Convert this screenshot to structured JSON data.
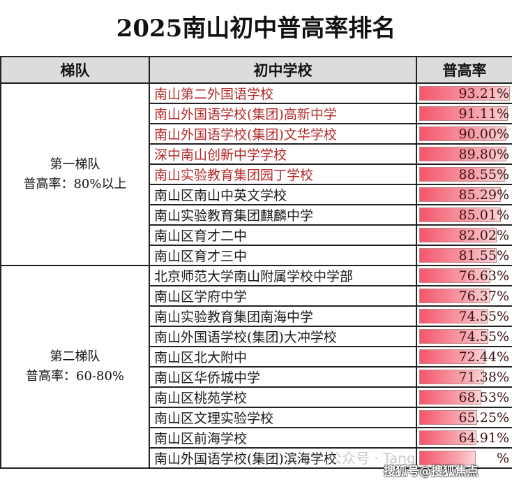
{
  "title": "2025南山初中普高率排名",
  "headers": {
    "tier": "梯队",
    "school": "初中学校",
    "rate": "普高率"
  },
  "tiers": [
    {
      "name": "第一梯队",
      "note": "普高率：80%以上",
      "rows": [
        {
          "school": "南山第二外国语学校",
          "rate": "93.21%",
          "value": 93.21,
          "highlight": true
        },
        {
          "school": "南山外国语学校(集团)高新中学",
          "rate": "91.11%",
          "value": 91.11,
          "highlight": true
        },
        {
          "school": "南山外国语学校(集团)文华学校",
          "rate": "90.00%",
          "value": 90.0,
          "highlight": true
        },
        {
          "school": "深中南山创新中学学校",
          "rate": "89.80%",
          "value": 89.8,
          "highlight": true
        },
        {
          "school": "南山实验教育集团园丁学校",
          "rate": "88.55%",
          "value": 88.55,
          "highlight": true
        },
        {
          "school": "南山区南山中英文学校",
          "rate": "85.29%",
          "value": 85.29,
          "highlight": false
        },
        {
          "school": "南山实验教育集团麒麟中学",
          "rate": "85.01%",
          "value": 85.01,
          "highlight": false
        },
        {
          "school": "南山区育才二中",
          "rate": "82.02%",
          "value": 82.02,
          "highlight": false
        },
        {
          "school": "南山区育才三中",
          "rate": "81.55%",
          "value": 81.55,
          "highlight": false
        }
      ]
    },
    {
      "name": "第二梯队",
      "note": "普高率：60-80%",
      "rows": [
        {
          "school": "北京师范大学南山附属学校中学部",
          "rate": "76.63%",
          "value": 76.63,
          "highlight": false
        },
        {
          "school": "南山区学府中学",
          "rate": "76.37%",
          "value": 76.37,
          "highlight": false
        },
        {
          "school": "南山实验教育集团南海中学",
          "rate": "74.55%",
          "value": 74.55,
          "highlight": false
        },
        {
          "school": "南山外国语学校(集团)大冲学校",
          "rate": "74.55%",
          "value": 74.55,
          "highlight": false
        },
        {
          "school": "南山区北大附中",
          "rate": "72.44%",
          "value": 72.44,
          "highlight": false
        },
        {
          "school": "南山区华侨城中学",
          "rate": "71.38%",
          "value": 71.38,
          "highlight": false
        },
        {
          "school": "南山区桃苑学校",
          "rate": "68.53%",
          "value": 68.53,
          "highlight": false
        },
        {
          "school": "南山区文理实验学校",
          "rate": "65.25%",
          "value": 65.25,
          "highlight": false
        },
        {
          "school": "南山区前海学校",
          "rate": "64.91%",
          "value": 64.91,
          "highlight": false
        },
        {
          "school": "南山外国语学校(集团)滨海学校",
          "rate": "%",
          "value": 64,
          "highlight": false
        }
      ]
    }
  ],
  "watermarks": [
    "公众号 · Tang",
    "搜狐号@搜狐焦点"
  ],
  "colors": {
    "highlight": "#b22a2a",
    "bar": "#f4566a",
    "header_bg": "#dcdcdc"
  }
}
